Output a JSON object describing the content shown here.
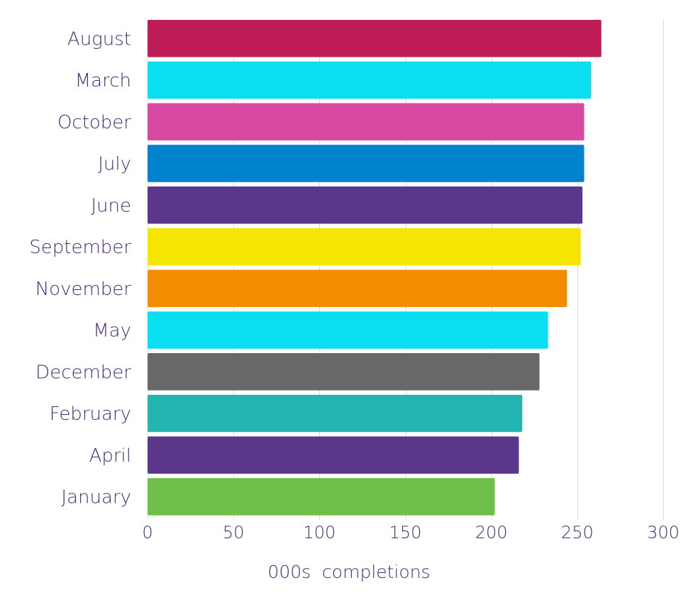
{
  "chart_data": {
    "type": "bar",
    "orientation": "horizontal",
    "categories": [
      "August",
      "March",
      "October",
      "July",
      "June",
      "September",
      "November",
      "May",
      "December",
      "February",
      "April",
      "January"
    ],
    "values": [
      264,
      258,
      254,
      254,
      253,
      252,
      244,
      233,
      228,
      218,
      216,
      202
    ],
    "colors": [
      "#be1c57",
      "#0adff1",
      "#d849a1",
      "#0082cc",
      "#5b378c",
      "#f4e600",
      "#f28c00",
      "#0adff1",
      "#686868",
      "#25b5b1",
      "#5b378c",
      "#6dbf4a"
    ],
    "xlabel": "000s  completions",
    "ylabel": "",
    "title": "",
    "xlim": [
      0,
      300
    ],
    "xticks": [
      0,
      50,
      100,
      150,
      200,
      250,
      300
    ],
    "grid": "vertical",
    "label_color": "#4a2b7a"
  }
}
